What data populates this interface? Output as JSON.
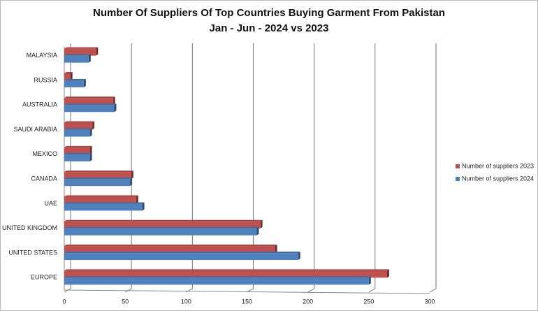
{
  "chart_data": {
    "type": "bar",
    "orientation": "horizontal",
    "title": "Number Of Suppliers Of Top Countries Buying Garment From Pakistan",
    "subtitle": "Jan - Jun - 2024 vs 2023",
    "categories": [
      "EUROPE",
      "UNITED STATES",
      "UNITED KINGDOM",
      "UAE",
      "CANADA",
      "MEXICO",
      "SAUDI ARABIA",
      "AUSTRALIA",
      "RUSSIA",
      "MALAYSIA"
    ],
    "series": [
      {
        "name": "Number of suppliers 2023",
        "color": "#c0504d",
        "values": [
          265,
          173,
          161,
          59,
          55,
          21,
          23,
          40,
          5,
          26
        ]
      },
      {
        "name": "Number of suppliers 2024",
        "color": "#4f81bd",
        "values": [
          250,
          192,
          158,
          64,
          54,
          21,
          21,
          41,
          16,
          20
        ]
      }
    ],
    "xlim": [
      0,
      300
    ],
    "xticks": [
      0,
      50,
      100,
      150,
      200,
      250,
      300
    ],
    "grid": true,
    "legend": "right"
  }
}
